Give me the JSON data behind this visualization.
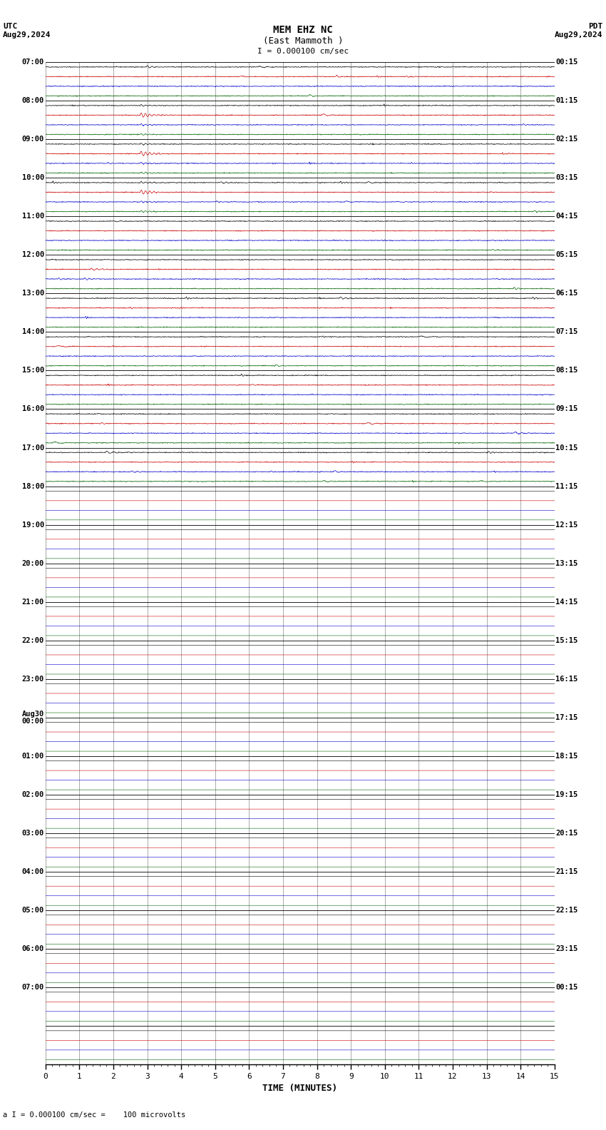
{
  "title_line1": "MEM EHZ NC",
  "title_line2": "(East Mammoth )",
  "scale_label": "I = 0.000100 cm/sec",
  "utc_label": "UTC",
  "utc_date": "Aug29,2024",
  "pdt_label": "PDT",
  "pdt_date": "Aug29,2024",
  "xlabel": "TIME (MINUTES)",
  "footer": "a I = 0.000100 cm/sec =    100 microvolts",
  "bg_color": "#ffffff",
  "grid_color": "#888888",
  "hline_color": "#000000",
  "trace_colors": [
    "#000000",
    "#cc0000",
    "#0000cc",
    "#006600"
  ],
  "num_groups": 26,
  "traces_per_group": 4,
  "left_labels_utc": [
    "07:00",
    "08:00",
    "09:00",
    "10:00",
    "11:00",
    "12:00",
    "13:00",
    "14:00",
    "15:00",
    "16:00",
    "17:00",
    "18:00",
    "19:00",
    "20:00",
    "21:00",
    "22:00",
    "23:00",
    "Aug30\n00:00",
    "01:00",
    "02:00",
    "03:00",
    "04:00",
    "05:00",
    "06:00",
    "07:00",
    ""
  ],
  "right_labels_pdt": [
    "00:15",
    "01:15",
    "02:15",
    "03:15",
    "04:15",
    "05:15",
    "06:15",
    "07:15",
    "08:15",
    "09:15",
    "10:15",
    "11:15",
    "12:15",
    "13:15",
    "14:15",
    "15:15",
    "16:15",
    "17:15",
    "18:15",
    "19:15",
    "20:15",
    "21:15",
    "22:15",
    "23:15",
    "00:15",
    ""
  ],
  "xmin": 0,
  "xmax": 15,
  "xticks": [
    0,
    1,
    2,
    3,
    4,
    5,
    6,
    7,
    8,
    9,
    10,
    11,
    12,
    13,
    14,
    15
  ],
  "noise_seed": 42,
  "active_groups": 11,
  "amplitude_scale": 0.35,
  "N": 1500
}
